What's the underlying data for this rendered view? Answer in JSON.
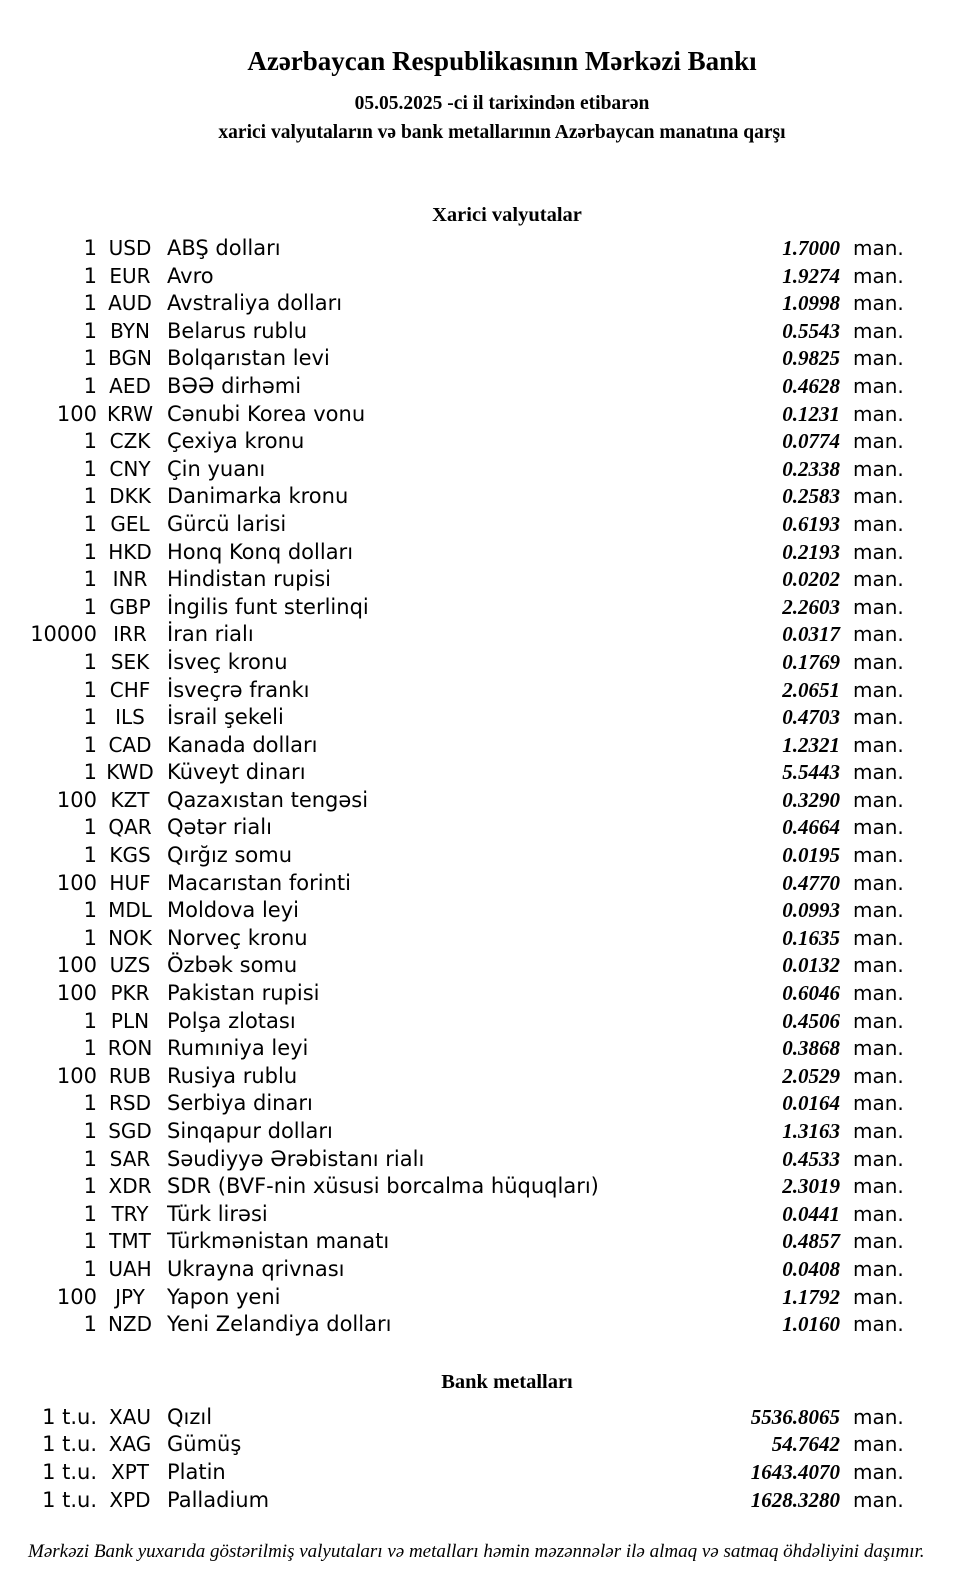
{
  "header": {
    "title": "Azərbaycan Respublikasının Mərkəzi Bankı",
    "date_line": "05.05.2025 -ci il tarixindən etibarən",
    "subtitle": "xarici valyutaların və bank metallarının Azərbaycan manatına qarşı"
  },
  "currencies_section": {
    "title": "Xarici valyutalar",
    "unit_label": "man.",
    "rows": [
      {
        "qty": "1",
        "code": "USD",
        "name": "ABŞ dolları",
        "rate": "1.7000"
      },
      {
        "qty": "1",
        "code": "EUR",
        "name": "Avro",
        "rate": "1.9274"
      },
      {
        "qty": "1",
        "code": "AUD",
        "name": "Avstraliya dolları",
        "rate": "1.0998"
      },
      {
        "qty": "1",
        "code": "BYN",
        "name": "Belarus rublu",
        "rate": "0.5543"
      },
      {
        "qty": "1",
        "code": "BGN",
        "name": "Bolqarıstan levi",
        "rate": "0.9825"
      },
      {
        "qty": "1",
        "code": "AED",
        "name": "BƏƏ dirhəmi",
        "rate": "0.4628"
      },
      {
        "qty": "100",
        "code": "KRW",
        "name": "Cənubi Korea vonu",
        "rate": "0.1231"
      },
      {
        "qty": "1",
        "code": "CZK",
        "name": "Çexiya kronu",
        "rate": "0.0774"
      },
      {
        "qty": "1",
        "code": "CNY",
        "name": "Çin yuanı",
        "rate": "0.2338"
      },
      {
        "qty": "1",
        "code": "DKK",
        "name": "Danimarka kronu",
        "rate": "0.2583"
      },
      {
        "qty": "1",
        "code": "GEL",
        "name": "Gürcü larisi",
        "rate": "0.6193"
      },
      {
        "qty": "1",
        "code": "HKD",
        "name": "Honq Konq dolları",
        "rate": "0.2193"
      },
      {
        "qty": "1",
        "code": "INR",
        "name": "Hindistan rupisi",
        "rate": "0.0202"
      },
      {
        "qty": "1",
        "code": "GBP",
        "name": "İngilis funt sterlinqi",
        "rate": "2.2603"
      },
      {
        "qty": "10000",
        "code": "IRR",
        "name": "İran rialı",
        "rate": "0.0317"
      },
      {
        "qty": "1",
        "code": "SEK",
        "name": "İsveç kronu",
        "rate": "0.1769"
      },
      {
        "qty": "1",
        "code": "CHF",
        "name": "İsveçrə frankı",
        "rate": "2.0651"
      },
      {
        "qty": "1",
        "code": "ILS",
        "name": "İsrail şekeli",
        "rate": "0.4703"
      },
      {
        "qty": "1",
        "code": "CAD",
        "name": "Kanada dolları",
        "rate": "1.2321"
      },
      {
        "qty": "1",
        "code": "KWD",
        "name": "Küveyt dinarı",
        "rate": "5.5443"
      },
      {
        "qty": "100",
        "code": "KZT",
        "name": "Qazaxıstan tengəsi",
        "rate": "0.3290"
      },
      {
        "qty": "1",
        "code": "QAR",
        "name": "Qətər rialı",
        "rate": "0.4664"
      },
      {
        "qty": "1",
        "code": "KGS",
        "name": "Qırğız somu",
        "rate": "0.0195"
      },
      {
        "qty": "100",
        "code": "HUF",
        "name": "Macarıstan forinti",
        "rate": "0.4770"
      },
      {
        "qty": "1",
        "code": "MDL",
        "name": "Moldova leyi",
        "rate": "0.0993"
      },
      {
        "qty": "1",
        "code": "NOK",
        "name": "Norveç kronu",
        "rate": "0.1635"
      },
      {
        "qty": "100",
        "code": "UZS",
        "name": "Özbək somu",
        "rate": "0.0132"
      },
      {
        "qty": "100",
        "code": "PKR",
        "name": "Pakistan rupisi",
        "rate": "0.6046"
      },
      {
        "qty": "1",
        "code": "PLN",
        "name": "Polşa zlotası",
        "rate": "0.4506"
      },
      {
        "qty": "1",
        "code": "RON",
        "name": "Rumıniya leyi",
        "rate": "0.3868"
      },
      {
        "qty": "100",
        "code": "RUB",
        "name": "Rusiya rublu",
        "rate": "2.0529"
      },
      {
        "qty": "1",
        "code": "RSD",
        "name": "Serbiya dinarı",
        "rate": "0.0164"
      },
      {
        "qty": "1",
        "code": "SGD",
        "name": "Sinqapur dolları",
        "rate": "1.3163"
      },
      {
        "qty": "1",
        "code": "SAR",
        "name": "Səudiyyə Ərəbistanı rialı",
        "rate": "0.4533"
      },
      {
        "qty": "1",
        "code": "XDR",
        "name": "SDR (BVF-nin xüsusi borcalma hüquqları)",
        "rate": "2.3019"
      },
      {
        "qty": "1",
        "code": "TRY",
        "name": "Türk lirəsi",
        "rate": "0.0441"
      },
      {
        "qty": "1",
        "code": "TMT",
        "name": "Türkmənistan manatı",
        "rate": "0.4857"
      },
      {
        "qty": "1",
        "code": "UAH",
        "name": "Ukrayna qrivnası",
        "rate": "0.0408"
      },
      {
        "qty": "100",
        "code": "JPY",
        "name": "Yapon yeni",
        "rate": "1.1792"
      },
      {
        "qty": "1",
        "code": "NZD",
        "name": "Yeni Zelandiya dolları",
        "rate": "1.0160"
      }
    ]
  },
  "metals_section": {
    "title": "Bank metalları",
    "unit_label": "man.",
    "rows": [
      {
        "qty": "1 t.u.",
        "code": "XAU",
        "name": "Qızıl",
        "rate": "5536.8065"
      },
      {
        "qty": "1 t.u.",
        "code": "XAG",
        "name": "Gümüş",
        "rate": "54.7642"
      },
      {
        "qty": "1 t.u.",
        "code": "XPT",
        "name": "Platin",
        "rate": "1643.4070"
      },
      {
        "qty": "1 t.u.",
        "code": "XPD",
        "name": "Palladium",
        "rate": "1628.3280"
      }
    ]
  },
  "footer": {
    "note": "Mərkəzi Bank yuxarıda göstərilmiş valyutaları və metalları həmin məzənnələr ilə almaq və satmaq öhdəliyini daşımır."
  }
}
